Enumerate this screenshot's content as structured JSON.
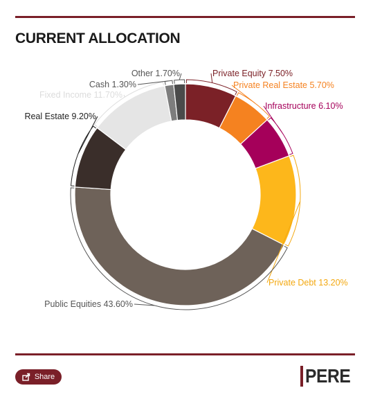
{
  "header": {
    "title": "CURRENT ALLOCATION"
  },
  "chart_data": {
    "type": "pie",
    "variant": "donut",
    "slices": [
      {
        "label": "Private Equity 7.50%",
        "value": 7.5,
        "color": "#7b2127",
        "label_color": "#7b2127"
      },
      {
        "label": "Private Real Estate 5.70%",
        "value": 5.7,
        "color": "#f58220",
        "label_color": "#f58220"
      },
      {
        "label": "Infrastructure 6.10%",
        "value": 6.1,
        "color": "#a5005a",
        "label_color": "#a5005a"
      },
      {
        "label": "Private Debt 13.20%",
        "value": 13.2,
        "color": "#fdb71b",
        "label_color": "#f3a810"
      },
      {
        "label": "Public Equities 43.60%",
        "value": 43.6,
        "color": "#6e6259",
        "label_color": "#555555"
      },
      {
        "label": "Real Estate 9.20%",
        "value": 9.2,
        "color": "#3a2e2a",
        "label_color": "#222222"
      },
      {
        "label": "Fixed Income 11.70%",
        "value": 11.7,
        "color": "#e5e5e5",
        "label_color": "#dcdcdc"
      },
      {
        "label": "Cash 1.30%",
        "value": 1.3,
        "color": "#7d7d7d",
        "label_color": "#555555"
      },
      {
        "label": "Other 1.70%",
        "value": 1.7,
        "color": "#4a4a4a",
        "label_color": "#555555"
      }
    ]
  },
  "footer": {
    "share_label": "Share",
    "logo_text": "PERE",
    "brand_color": "#7a1f28"
  }
}
